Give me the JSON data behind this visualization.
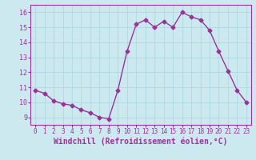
{
  "x": [
    0,
    1,
    2,
    3,
    4,
    5,
    6,
    7,
    8,
    9,
    10,
    11,
    12,
    13,
    14,
    15,
    16,
    17,
    18,
    19,
    20,
    21,
    22,
    23
  ],
  "y": [
    10.8,
    10.6,
    10.1,
    9.9,
    9.8,
    9.5,
    9.3,
    9.0,
    8.9,
    10.8,
    13.4,
    15.2,
    15.5,
    15.0,
    15.4,
    15.0,
    16.0,
    15.7,
    15.5,
    14.8,
    13.4,
    12.1,
    10.8,
    10.0
  ],
  "line_color": "#993399",
  "marker": "D",
  "markersize": 2.5,
  "linewidth": 1.0,
  "xlabel": "Windchill (Refroidissement éolien,°C)",
  "xlabel_fontsize": 7,
  "xtick_fontsize": 5.5,
  "ytick_fontsize": 6,
  "xtick_labels": [
    "0",
    "1",
    "2",
    "3",
    "4",
    "5",
    "6",
    "7",
    "8",
    "9",
    "10",
    "11",
    "12",
    "13",
    "14",
    "15",
    "16",
    "17",
    "18",
    "19",
    "20",
    "21",
    "22",
    "23"
  ],
  "yticks": [
    9,
    10,
    11,
    12,
    13,
    14,
    15,
    16
  ],
  "ylim": [
    8.5,
    16.5
  ],
  "xlim": [
    -0.5,
    23.5
  ],
  "background_color": "#cce9f0",
  "grid_color": "#aad4de",
  "tick_color": "#993399",
  "label_color": "#993399",
  "spine_color": "#993399"
}
